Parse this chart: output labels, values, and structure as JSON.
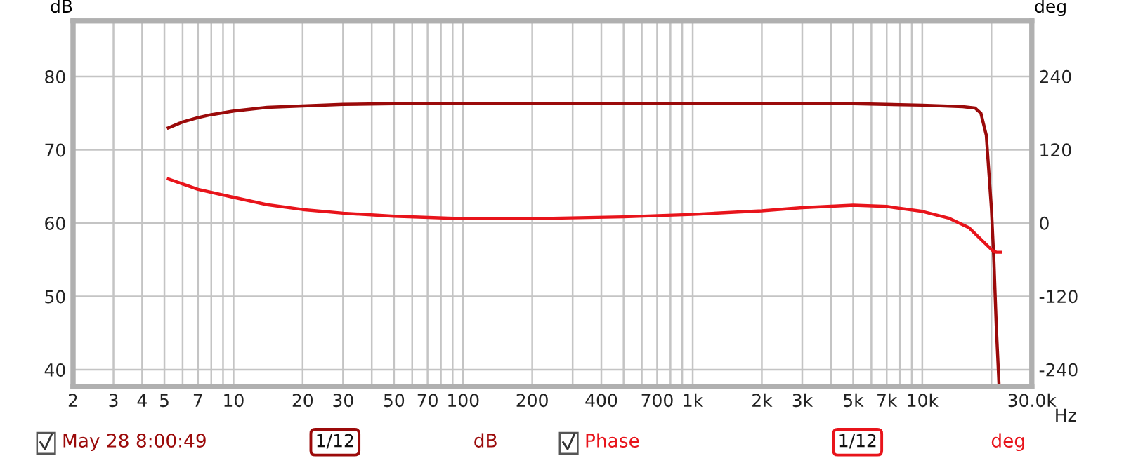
{
  "chart_data": {
    "type": "line",
    "ylabel": "dB",
    "y2label": "deg",
    "xlim": [
      2,
      30000
    ],
    "ylim": [
      37.7,
      87.6
    ],
    "y2lim": [
      -268,
      331
    ],
    "log": "x",
    "xticks": [
      2,
      3,
      4,
      5,
      {
        "value": 6,
        "label": null
      },
      7,
      {
        "value": 8,
        "label": null
      },
      {
        "value": 9,
        "label": null
      },
      10,
      20,
      30,
      {
        "value": 40,
        "label": null
      },
      50,
      {
        "value": 60,
        "label": null
      },
      70,
      {
        "value": 80,
        "label": null
      },
      {
        "value": 90,
        "label": null
      },
      100,
      200,
      {
        "value": 300,
        "label": null
      },
      400,
      {
        "value": 500,
        "label": null
      },
      {
        "value": 600,
        "label": null
      },
      700,
      {
        "value": 800,
        "label": null
      },
      {
        "value": 900,
        "label": null
      },
      {
        "value": 1000,
        "label": "1k"
      },
      {
        "value": 2000,
        "label": "2k"
      },
      {
        "value": 3000,
        "label": "3k"
      },
      {
        "value": 4000,
        "label": null
      },
      {
        "value": 5000,
        "label": "5k"
      },
      {
        "value": 6000,
        "label": null
      },
      {
        "value": 7000,
        "label": "7k"
      },
      {
        "value": 8000,
        "label": null
      },
      {
        "value": 9000,
        "label": null
      },
      {
        "value": 10000,
        "label": "10k"
      },
      {
        "value": 20000,
        "label": null
      },
      {
        "value": 30000,
        "label": "30.0k"
      }
    ],
    "xlabel": "Hz",
    "yticks": [
      40,
      50,
      60,
      70,
      80
    ],
    "y2ticks": [
      -240,
      -120,
      0,
      120,
      240
    ],
    "grid": true,
    "legend": "bottom",
    "line_style": "solid",
    "marker": "none",
    "series": [
      {
        "name": "May 28 8:00:49",
        "color": "#9b0a0a",
        "x": [
          5.2,
          6,
          7,
          8,
          10,
          14,
          20,
          30,
          50,
          100,
          300,
          1000,
          3000,
          5000,
          10000,
          15000,
          17000,
          18000,
          19000,
          20000,
          20500,
          21000,
          21600
        ],
        "values": [
          73.0,
          73.8,
          74.4,
          74.8,
          75.3,
          75.8,
          76.0,
          76.2,
          76.3,
          76.3,
          76.3,
          76.3,
          76.3,
          76.3,
          76.1,
          75.9,
          75.7,
          75.0,
          72.0,
          62.0,
          55.0,
          46.0,
          37.8
        ]
      },
      {
        "name": "Phase",
        "color": "#e8141b",
        "axis": "y2",
        "x": [
          5.2,
          7,
          10,
          14,
          20,
          30,
          50,
          100,
          200,
          500,
          1000,
          2000,
          3000,
          5000,
          7000,
          10000,
          13000,
          16000,
          20200,
          21000,
          22000
        ],
        "values": [
          72,
          55,
          42,
          30,
          22,
          16,
          11,
          7,
          7,
          10,
          14,
          20,
          25,
          29,
          27,
          19,
          8,
          -8,
          -45,
          -48,
          -48
        ]
      }
    ],
    "annotations": [
      "1/12",
      "dB",
      "1/12",
      "deg"
    ]
  }
}
